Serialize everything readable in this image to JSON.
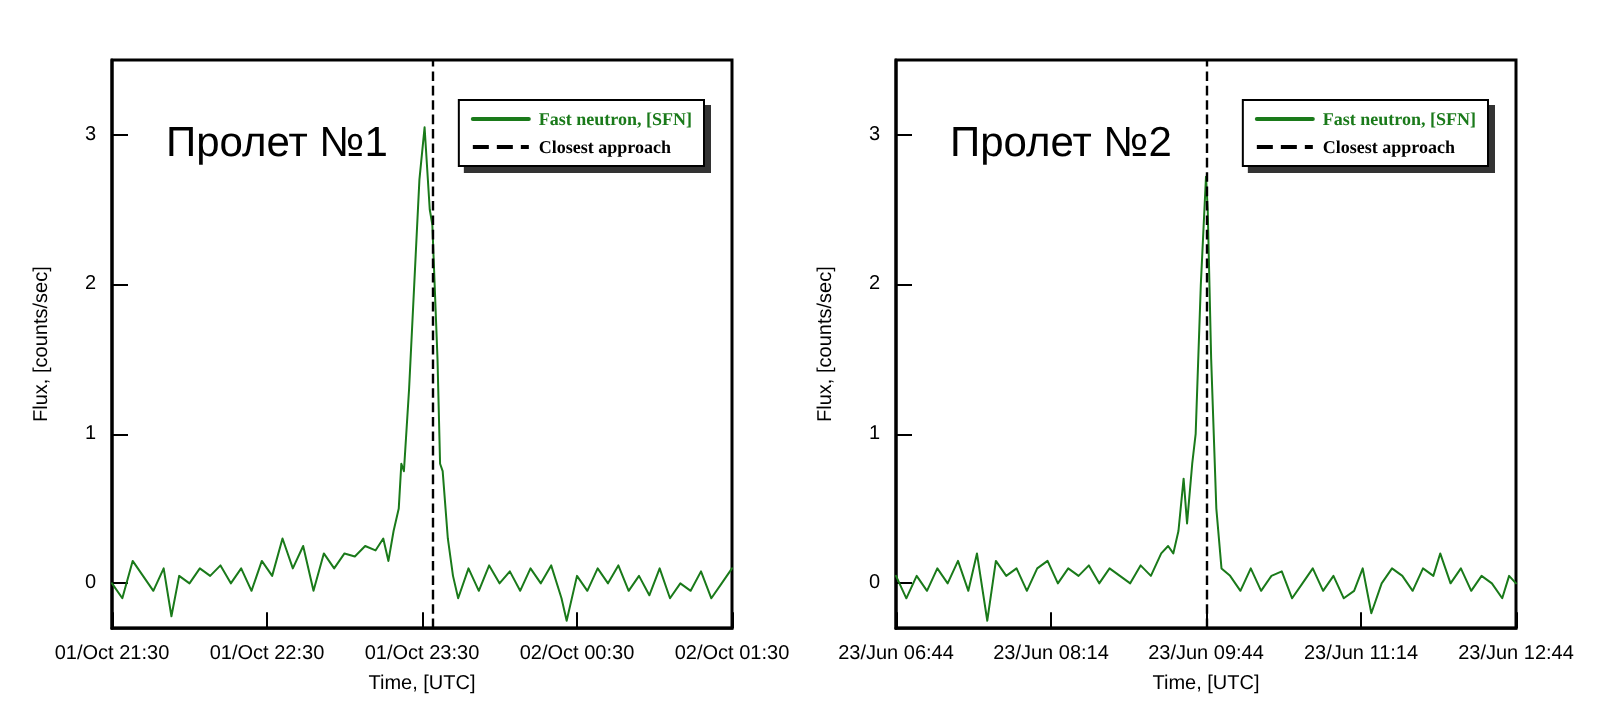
{
  "chart_data": [
    {
      "type": "line",
      "title": "Пролет №1",
      "xlabel": "Time, [UTC]",
      "ylabel": "Flux, [counts/sec]",
      "xlim": [
        "--10-01T21:30",
        "--10-02T01:30"
      ],
      "xticks": [
        {
          "value": "--10-01T21:30",
          "label": "01/Oct 21:30"
        },
        {
          "value": "--10-01T22:30",
          "label": "01/Oct 22:30"
        },
        {
          "value": "--10-01T23:30",
          "label": "01/Oct 23:30"
        },
        {
          "value": "--10-02T00:30",
          "label": "02/Oct 00:30"
        },
        {
          "value": "--10-02T01:30",
          "label": "02/Oct 01:30"
        }
      ],
      "ylim": [
        -0.3,
        3.5
      ],
      "yticks": [
        0,
        1,
        2,
        3
      ],
      "grid": false,
      "legend": "top right",
      "marker": "none",
      "line_style": "solid",
      "ref_lines": [
        {
          "axis": "x",
          "value": "--10-01T23:34",
          "label": "Closest approach",
          "color": "#000000",
          "line_style": "dashed"
        }
      ],
      "series": [
        {
          "name": "Fast neutron, [SFN]",
          "color": "#1a7a1a",
          "x": [
            "--10-01T21:30",
            "--10-01T21:34",
            "--10-01T21:38",
            "--10-01T21:42",
            "--10-01T21:46",
            "--10-01T21:50",
            "--10-01T21:53",
            "--10-01T21:56",
            "--10-01T22:00",
            "--10-01T22:04",
            "--10-01T22:08",
            "--10-01T22:12",
            "--10-01T22:16",
            "--10-01T22:20",
            "--10-01T22:24",
            "--10-01T22:28",
            "--10-01T22:32",
            "--10-01T22:36",
            "--10-01T22:40",
            "--10-01T22:44",
            "--10-01T22:48",
            "--10-01T22:52",
            "--10-01T22:56",
            "--10-01T23:00",
            "--10-01T23:04",
            "--10-01T23:08",
            "--10-01T23:12",
            "--10-01T23:15",
            "--10-01T23:17",
            "--10-01T23:19",
            "--10-01T23:21",
            "--10-01T23:22",
            "--10-01T23:23",
            "--10-01T23:25",
            "--10-01T23:27",
            "--10-01T23:29",
            "--10-01T23:31",
            "--10-01T23:33",
            "--10-01T23:34",
            "--10-01T23:36",
            "--10-01T23:37",
            "--10-01T23:38",
            "--10-01T23:40",
            "--10-01T23:42",
            "--10-01T23:44",
            "--10-01T23:48",
            "--10-01T23:52",
            "--10-01T23:56",
            "--10-02T00:00",
            "--10-02T00:04",
            "--10-02T00:08",
            "--10-02T00:12",
            "--10-02T00:16",
            "--10-02T00:20",
            "--10-02T00:24",
            "--10-02T00:26",
            "--10-02T00:30",
            "--10-02T00:34",
            "--10-02T00:38",
            "--10-02T00:42",
            "--10-02T00:46",
            "--10-02T00:50",
            "--10-02T00:54",
            "--10-02T00:58",
            "--10-02T01:02",
            "--10-02T01:06",
            "--10-02T01:10",
            "--10-02T01:14",
            "--10-02T01:18",
            "--10-02T01:22",
            "--10-02T01:26",
            "--10-02T01:30"
          ],
          "values": [
            0.0,
            -0.1,
            0.15,
            0.05,
            -0.05,
            0.1,
            -0.22,
            0.05,
            0.0,
            0.1,
            0.05,
            0.12,
            0.0,
            0.1,
            -0.05,
            0.15,
            0.05,
            0.3,
            0.1,
            0.25,
            -0.05,
            0.2,
            0.1,
            0.2,
            0.18,
            0.25,
            0.22,
            0.3,
            0.15,
            0.35,
            0.5,
            0.8,
            0.75,
            1.3,
            2.0,
            2.7,
            3.05,
            2.5,
            2.4,
            1.5,
            0.8,
            0.75,
            0.3,
            0.05,
            -0.1,
            0.1,
            -0.05,
            0.12,
            0.0,
            0.08,
            -0.05,
            0.1,
            0.0,
            0.12,
            -0.1,
            -0.25,
            0.05,
            -0.05,
            0.1,
            0.0,
            0.12,
            -0.05,
            0.05,
            -0.08,
            0.1,
            -0.1,
            0.0,
            -0.05,
            0.08,
            -0.1,
            0.0,
            0.1
          ]
        }
      ]
    },
    {
      "type": "line",
      "title": "Пролет №2",
      "xlabel": "Time, [UTC]",
      "ylabel": "Flux, [counts/sec]",
      "xlim": [
        "--06-23T06:44",
        "--06-23T12:44"
      ],
      "xticks": [
        {
          "value": "--06-23T06:44",
          "label": "23/Jun 06:44"
        },
        {
          "value": "--06-23T08:14",
          "label": "23/Jun 08:14"
        },
        {
          "value": "--06-23T09:44",
          "label": "23/Jun 09:44"
        },
        {
          "value": "--06-23T11:14",
          "label": "23/Jun 11:14"
        },
        {
          "value": "--06-23T12:44",
          "label": "23/Jun 12:44"
        }
      ],
      "ylim": [
        -0.3,
        3.5
      ],
      "yticks": [
        0,
        1,
        2,
        3
      ],
      "grid": false,
      "legend": "top right",
      "marker": "none",
      "line_style": "solid",
      "ref_lines": [
        {
          "axis": "x",
          "value": "--06-23T09:44",
          "label": "Closest approach",
          "color": "#000000",
          "line_style": "dashed"
        }
      ],
      "series": [
        {
          "name": "Fast neutron, [SFN]",
          "color": "#1a7a1a",
          "x": [
            "--06-23T06:44",
            "--06-23T06:50",
            "--06-23T06:56",
            "--06-23T07:02",
            "--06-23T07:08",
            "--06-23T07:14",
            "--06-23T07:20",
            "--06-23T07:26",
            "--06-23T07:31",
            "--06-23T07:37",
            "--06-23T07:42",
            "--06-23T07:48",
            "--06-23T07:54",
            "--06-23T08:00",
            "--06-23T08:06",
            "--06-23T08:12",
            "--06-23T08:18",
            "--06-23T08:24",
            "--06-23T08:30",
            "--06-23T08:36",
            "--06-23T08:42",
            "--06-23T08:48",
            "--06-23T08:54",
            "--06-23T09:00",
            "--06-23T09:06",
            "--06-23T09:12",
            "--06-23T09:18",
            "--06-23T09:22",
            "--06-23T09:25",
            "--06-23T09:28",
            "--06-23T09:31",
            "--06-23T09:33",
            "--06-23T09:36",
            "--06-23T09:38",
            "--06-23T09:41",
            "--06-23T09:44",
            "--06-23T09:45",
            "--06-23T09:47",
            "--06-23T09:50",
            "--06-23T09:53",
            "--06-23T09:58",
            "--06-23T10:04",
            "--06-23T10:10",
            "--06-23T10:16",
            "--06-23T10:22",
            "--06-23T10:28",
            "--06-23T10:34",
            "--06-23T10:40",
            "--06-23T10:46",
            "--06-23T10:52",
            "--06-23T10:58",
            "--06-23T11:04",
            "--06-23T11:10",
            "--06-23T11:15",
            "--06-23T11:20",
            "--06-23T11:26",
            "--06-23T11:32",
            "--06-23T11:38",
            "--06-23T11:44",
            "--06-23T11:50",
            "--06-23T11:56",
            "--06-23T12:00",
            "--06-23T12:06",
            "--06-23T12:12",
            "--06-23T12:18",
            "--06-23T12:24",
            "--06-23T12:30",
            "--06-23T12:36",
            "--06-23T12:40",
            "--06-23T12:44"
          ],
          "values": [
            0.05,
            -0.1,
            0.05,
            -0.05,
            0.1,
            0.0,
            0.15,
            -0.05,
            0.2,
            -0.25,
            0.15,
            0.05,
            0.1,
            -0.05,
            0.1,
            0.15,
            0.0,
            0.1,
            0.05,
            0.12,
            0.0,
            0.1,
            0.05,
            0.0,
            0.12,
            0.05,
            0.2,
            0.25,
            0.2,
            0.35,
            0.7,
            0.4,
            0.8,
            1.0,
            2.0,
            2.72,
            2.5,
            1.5,
            0.5,
            0.1,
            0.05,
            -0.05,
            0.1,
            -0.05,
            0.05,
            0.08,
            -0.1,
            0.0,
            0.1,
            -0.05,
            0.05,
            -0.1,
            -0.05,
            0.1,
            -0.2,
            0.0,
            0.1,
            0.05,
            -0.05,
            0.1,
            0.05,
            0.2,
            0.0,
            0.1,
            -0.05,
            0.05,
            0.0,
            -0.1,
            0.05,
            0.0
          ]
        }
      ]
    }
  ]
}
